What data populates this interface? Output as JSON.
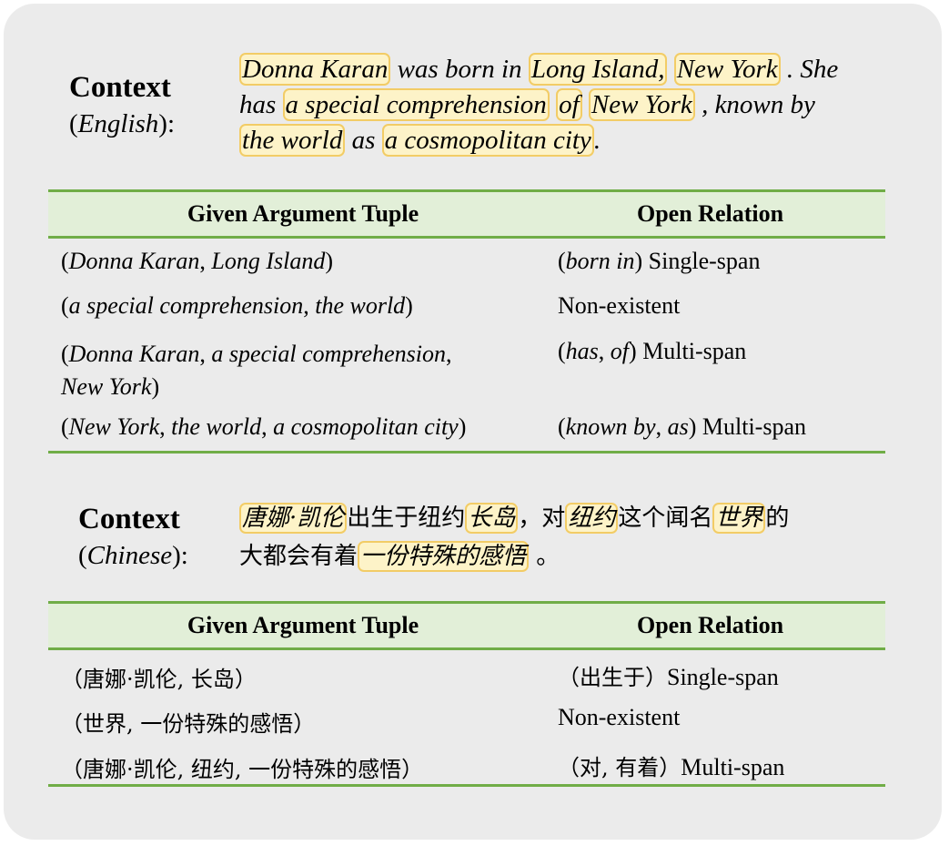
{
  "english": {
    "label": "Context",
    "sublabel_open": "(",
    "sublabel_lang": "English",
    "sublabel_close": "):",
    "line1": {
      "a": "Donna Karan",
      "b": " was born in ",
      "c": "Long Island,",
      "d": " ",
      "e": "New York",
      "f": " . She"
    },
    "line2": {
      "a": "has ",
      "b": "a special comprehension",
      "c": " ",
      "d": "of",
      "e": " ",
      "f": "New York",
      "g": " , known by"
    },
    "line3": {
      "a": "the world",
      "b": " as ",
      "c": "a cosmopolitan city",
      "d": "."
    },
    "table": {
      "header_left": "Given Argument Tuple",
      "header_right": "Open Relation",
      "rows": [
        {
          "tuple": "(Donna Karan, Long Island)",
          "relation": "(born in) Single-span"
        },
        {
          "tuple": "(a special comprehension, the world)",
          "relation": "Non-existent"
        },
        {
          "tuple": "(Donna Karan, a special comprehension,",
          "tuple2": "New York)",
          "relation": "(has, of) Multi-span"
        },
        {
          "tuple": "(New York, the world, a cosmopolitan city)",
          "relation": "(known by, as) Multi-span"
        }
      ]
    }
  },
  "chinese": {
    "label": "Context",
    "sublabel_open": "(",
    "sublabel_lang": "Chinese",
    "sublabel_close": "):",
    "line1": {
      "a": "唐娜·凯伦",
      "b": "出生于纽约",
      "c": "长岛",
      "d": "，对",
      "e": "纽约",
      "f": "这个闻名",
      "g": "世界",
      "h": "的"
    },
    "line2": {
      "a": "大都会有着",
      "b": "一份特殊的感悟",
      "c": " 。"
    },
    "table": {
      "header_left": "Given Argument Tuple",
      "header_right": "Open Relation",
      "rows": [
        {
          "tuple": "（唐娜·凯伦, 长岛）",
          "rel_zh": "（出生于）",
          "relation": "Single-span"
        },
        {
          "tuple": "（世界, 一份特殊的感悟）",
          "rel_zh": "",
          "relation": "Non-existent"
        },
        {
          "tuple": "（唐娜·凯伦, 纽约, 一份特殊的感悟）",
          "rel_zh": "（对, 有着）",
          "relation": "Multi-span"
        }
      ]
    }
  }
}
